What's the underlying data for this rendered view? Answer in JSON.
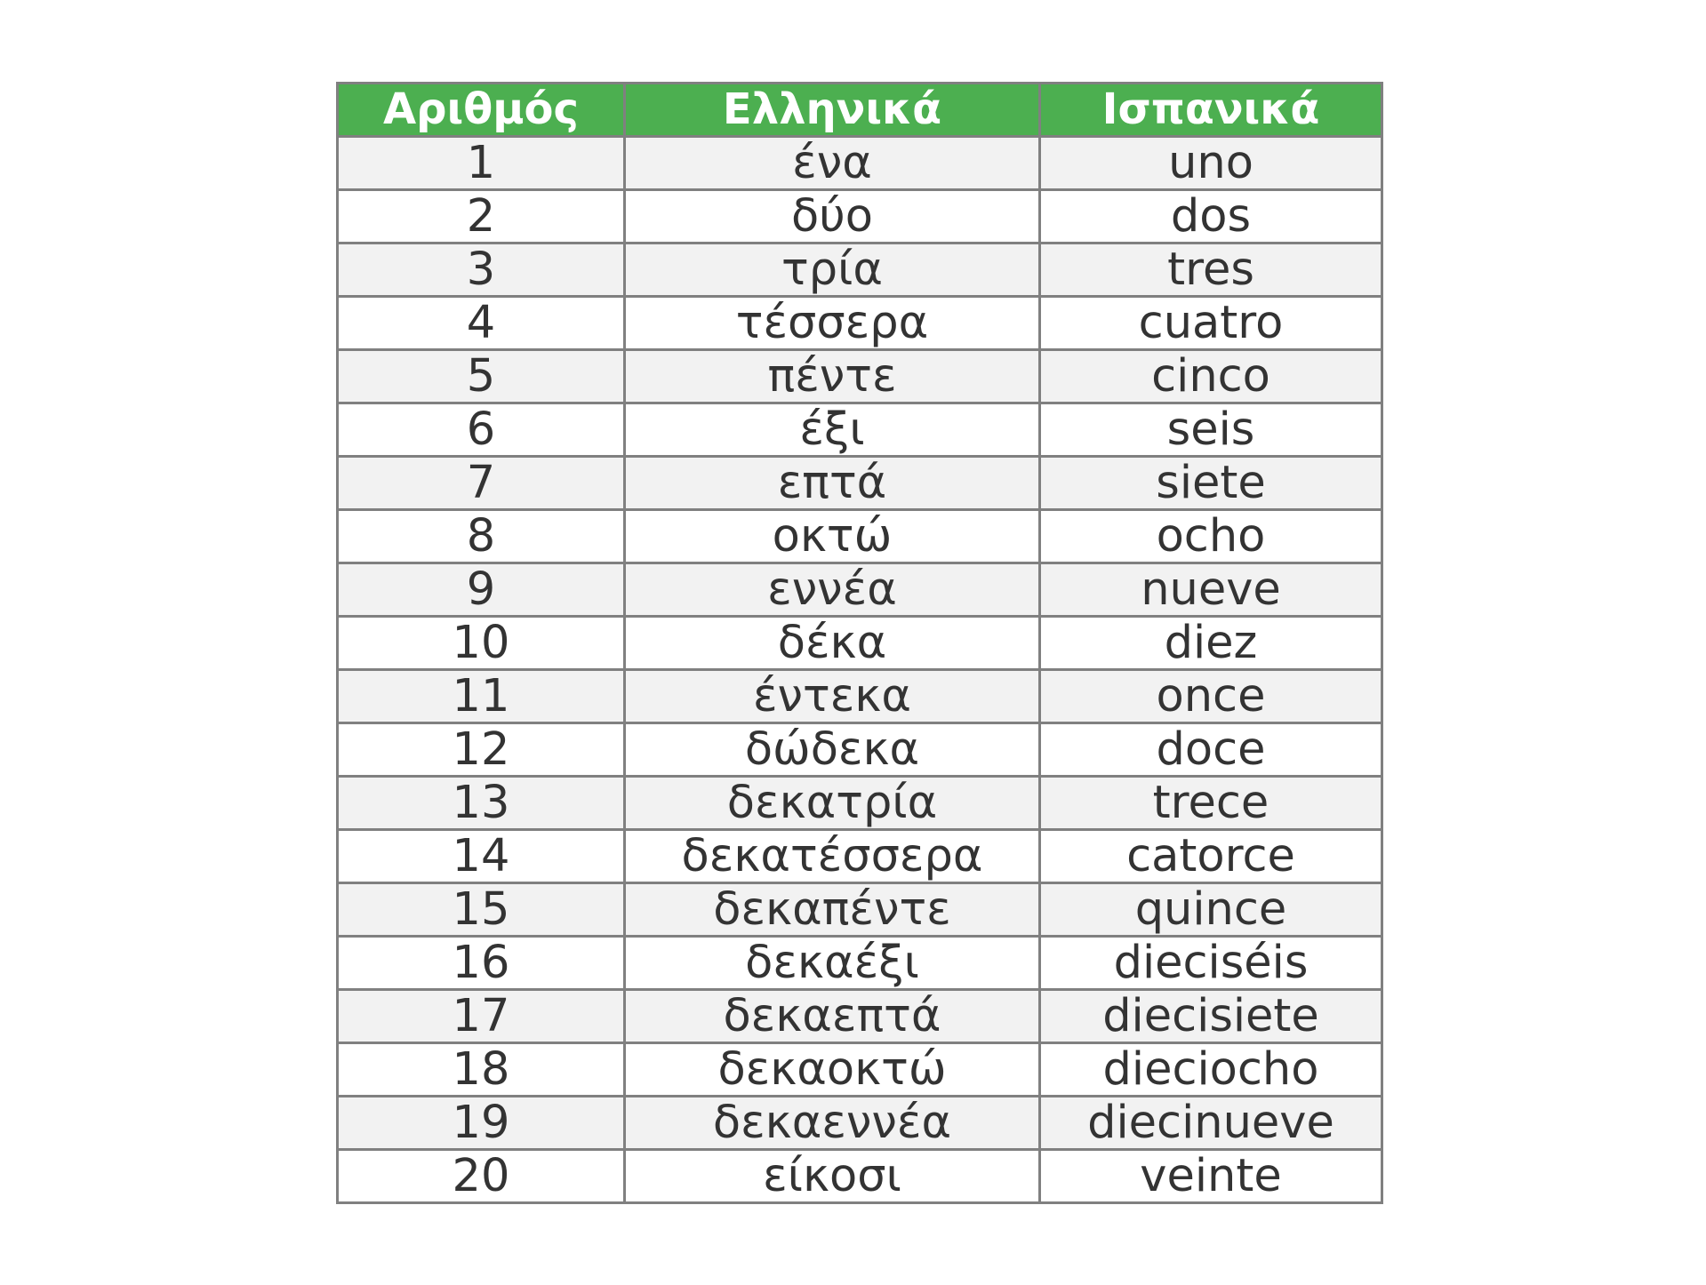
{
  "table": {
    "header_color": "#4caf50",
    "headers": [
      "Αριθμός",
      "Ελληνικά",
      "Ισπανικά"
    ],
    "rows": [
      [
        "1",
        "ένα",
        "uno"
      ],
      [
        "2",
        "δύο",
        "dos"
      ],
      [
        "3",
        "τρία",
        "tres"
      ],
      [
        "4",
        "τέσσερα",
        "cuatro"
      ],
      [
        "5",
        "πέντε",
        "cinco"
      ],
      [
        "6",
        "έξι",
        "seis"
      ],
      [
        "7",
        "επτά",
        "siete"
      ],
      [
        "8",
        "οκτώ",
        "ocho"
      ],
      [
        "9",
        "εννέα",
        "nueve"
      ],
      [
        "10",
        "δέκα",
        "diez"
      ],
      [
        "11",
        "έντεκα",
        "once"
      ],
      [
        "12",
        "δώδεκα",
        "doce"
      ],
      [
        "13",
        "δεκατρία",
        "trece"
      ],
      [
        "14",
        "δεκατέσσερα",
        "catorce"
      ],
      [
        "15",
        "δεκαπέντε",
        "quince"
      ],
      [
        "16",
        "δεκαέξι",
        "dieciséis"
      ],
      [
        "17",
        "δεκαεπτά",
        "diecisiete"
      ],
      [
        "18",
        "δεκαοκτώ",
        "dieciocho"
      ],
      [
        "19",
        "δεκαεννέα",
        "diecinueve"
      ],
      [
        "20",
        "είκοσι",
        "veinte"
      ]
    ]
  }
}
